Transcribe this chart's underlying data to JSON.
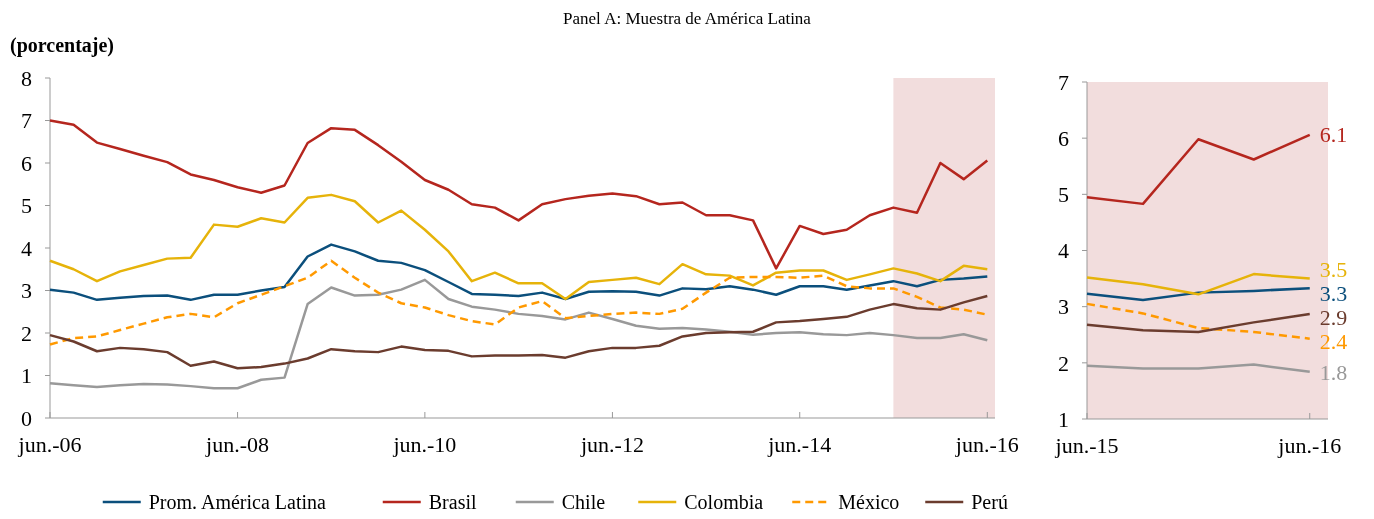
{
  "chart_data": [
    {
      "type": "line",
      "title": "Panel A: Muestra de América Latina",
      "ylabel": "(porcentaje)",
      "x": [
        "2006-06",
        "2006-09",
        "2006-12",
        "2007-03",
        "2007-06",
        "2007-09",
        "2007-12",
        "2008-03",
        "2008-06",
        "2008-09",
        "2008-12",
        "2009-03",
        "2009-06",
        "2009-09",
        "2009-12",
        "2010-03",
        "2010-06",
        "2010-09",
        "2010-12",
        "2011-03",
        "2011-06",
        "2011-09",
        "2011-12",
        "2012-03",
        "2012-06",
        "2012-09",
        "2012-12",
        "2013-03",
        "2013-06",
        "2013-09",
        "2013-12",
        "2014-03",
        "2014-06",
        "2014-09",
        "2014-12",
        "2015-03",
        "2015-06",
        "2015-09",
        "2015-12",
        "2016-03",
        "2016-06"
      ],
      "xlim": [
        "2006-06",
        "2016-07"
      ],
      "xticks": [
        {
          "value": "2006-06",
          "label": "jun.-06"
        },
        {
          "value": "2008-06",
          "label": "jun.-08"
        },
        {
          "value": "2010-06",
          "label": "jun.-10"
        },
        {
          "value": "2012-06",
          "label": "jun.-12"
        },
        {
          "value": "2014-06",
          "label": "jun.-14"
        },
        {
          "value": "2016-06",
          "label": "jun.-16"
        }
      ],
      "ylim": [
        0,
        8
      ],
      "yticks": [
        0,
        1,
        2,
        3,
        4,
        5,
        6,
        7,
        8
      ],
      "bands": [
        {
          "axis": "x",
          "from": "2015-06",
          "to": "2016-07",
          "color": "#f2dddd"
        }
      ],
      "legend": "bottom",
      "series": [
        {
          "name": "Prom. América Latina",
          "color": "#0b4f7c",
          "values": [
            3.02,
            2.95,
            2.78,
            2.83,
            2.87,
            2.88,
            2.78,
            2.9,
            2.9,
            3.0,
            3.08,
            3.8,
            4.08,
            3.92,
            3.7,
            3.65,
            3.48,
            3.2,
            2.92,
            2.9,
            2.87,
            2.95,
            2.8,
            2.97,
            2.98,
            2.97,
            2.88,
            3.05,
            3.03,
            3.1,
            3.02,
            2.9,
            3.1,
            3.1,
            3.02,
            3.12,
            3.22,
            3.1,
            3.25,
            3.28,
            3.33
          ]
        },
        {
          "name": "Brasil",
          "color": "#b5261e",
          "values": [
            7.0,
            6.9,
            6.48,
            6.33,
            6.17,
            6.02,
            5.73,
            5.6,
            5.43,
            5.3,
            5.47,
            6.47,
            6.82,
            6.78,
            6.42,
            6.03,
            5.6,
            5.37,
            5.03,
            4.95,
            4.65,
            5.03,
            5.15,
            5.23,
            5.28,
            5.22,
            5.03,
            5.07,
            4.77,
            4.77,
            4.65,
            3.52,
            4.52,
            4.33,
            4.43,
            4.77,
            4.95,
            4.83,
            6.0,
            5.62,
            6.06
          ]
        },
        {
          "name": "Chile",
          "color": "#999999",
          "values": [
            0.82,
            0.77,
            0.73,
            0.77,
            0.8,
            0.79,
            0.75,
            0.7,
            0.7,
            0.9,
            0.95,
            2.68,
            3.07,
            2.88,
            2.9,
            3.02,
            3.25,
            2.8,
            2.62,
            2.55,
            2.45,
            2.4,
            2.32,
            2.48,
            2.33,
            2.17,
            2.1,
            2.12,
            2.08,
            2.03,
            1.96,
            2.0,
            2.02,
            1.97,
            1.95,
            2.0,
            1.95,
            1.88,
            1.88,
            1.97,
            1.83
          ]
        },
        {
          "name": "Colombia",
          "color": "#e6b30a",
          "values": [
            3.7,
            3.5,
            3.22,
            3.45,
            3.6,
            3.75,
            3.77,
            4.55,
            4.5,
            4.7,
            4.6,
            5.18,
            5.25,
            5.1,
            4.6,
            4.88,
            4.43,
            3.92,
            3.22,
            3.42,
            3.17,
            3.17,
            2.8,
            3.2,
            3.25,
            3.3,
            3.15,
            3.62,
            3.38,
            3.35,
            3.12,
            3.42,
            3.47,
            3.47,
            3.25,
            3.38,
            3.52,
            3.4,
            3.22,
            3.58,
            3.5
          ]
        },
        {
          "name": "México",
          "color": "#ff9900",
          "line_style": "dashed",
          "values": [
            1.73,
            1.88,
            1.92,
            2.07,
            2.22,
            2.37,
            2.45,
            2.37,
            2.7,
            2.9,
            3.1,
            3.3,
            3.7,
            3.3,
            2.95,
            2.7,
            2.6,
            2.42,
            2.28,
            2.2,
            2.6,
            2.75,
            2.35,
            2.4,
            2.45,
            2.48,
            2.45,
            2.57,
            2.95,
            3.3,
            3.32,
            3.32,
            3.3,
            3.35,
            3.1,
            3.05,
            3.05,
            2.85,
            2.6,
            2.55,
            2.43
          ]
        },
        {
          "name": "Perú",
          "color": "#6b3c2e",
          "values": [
            1.95,
            1.8,
            1.57,
            1.65,
            1.62,
            1.55,
            1.23,
            1.33,
            1.17,
            1.2,
            1.28,
            1.4,
            1.62,
            1.57,
            1.55,
            1.68,
            1.6,
            1.58,
            1.45,
            1.47,
            1.47,
            1.48,
            1.42,
            1.57,
            1.65,
            1.65,
            1.7,
            1.92,
            2.0,
            2.02,
            2.03,
            2.25,
            2.28,
            2.33,
            2.38,
            2.55,
            2.68,
            2.58,
            2.55,
            2.72,
            2.87
          ]
        }
      ]
    },
    {
      "type": "line",
      "x": [
        "2015-06",
        "2015-09",
        "2015-12",
        "2016-03",
        "2016-06"
      ],
      "xlim": [
        "2015-06",
        "2016-07"
      ],
      "xticks": [
        {
          "value": "2015-06",
          "label": "jun.-15"
        },
        {
          "value": "2016-06",
          "label": "jun.-16"
        }
      ],
      "ylim": [
        1,
        7
      ],
      "yticks": [
        1,
        2,
        3,
        4,
        5,
        6,
        7
      ],
      "bands": [
        {
          "axis": "x",
          "from": "2015-06",
          "to": "2016-07",
          "color": "#f2dddd"
        }
      ],
      "series": [
        {
          "color": "#0b4f7c",
          "values": [
            3.23,
            3.12,
            3.25,
            3.28,
            3.33
          ],
          "value_labels": [
            null,
            null,
            null,
            null,
            "3.3"
          ]
        },
        {
          "color": "#b5261e",
          "values": [
            4.95,
            4.83,
            5.98,
            5.62,
            6.06
          ],
          "value_labels": [
            null,
            null,
            null,
            null,
            "6.1"
          ]
        },
        {
          "color": "#999999",
          "values": [
            1.95,
            1.9,
            1.9,
            1.97,
            1.84
          ],
          "value_labels": [
            null,
            null,
            null,
            null,
            "1.8"
          ]
        },
        {
          "color": "#e6b30a",
          "values": [
            3.52,
            3.4,
            3.22,
            3.58,
            3.5
          ],
          "value_labels": [
            null,
            null,
            null,
            null,
            "3.5"
          ]
        },
        {
          "color": "#ff9900",
          "line_style": "dashed",
          "values": [
            3.05,
            2.88,
            2.62,
            2.55,
            2.43
          ],
          "value_labels": [
            null,
            null,
            null,
            null,
            "2.4"
          ]
        },
        {
          "color": "#6b3c2e",
          "values": [
            2.68,
            2.58,
            2.55,
            2.72,
            2.87
          ],
          "value_labels": [
            null,
            null,
            null,
            null,
            "2.9"
          ]
        }
      ]
    }
  ]
}
